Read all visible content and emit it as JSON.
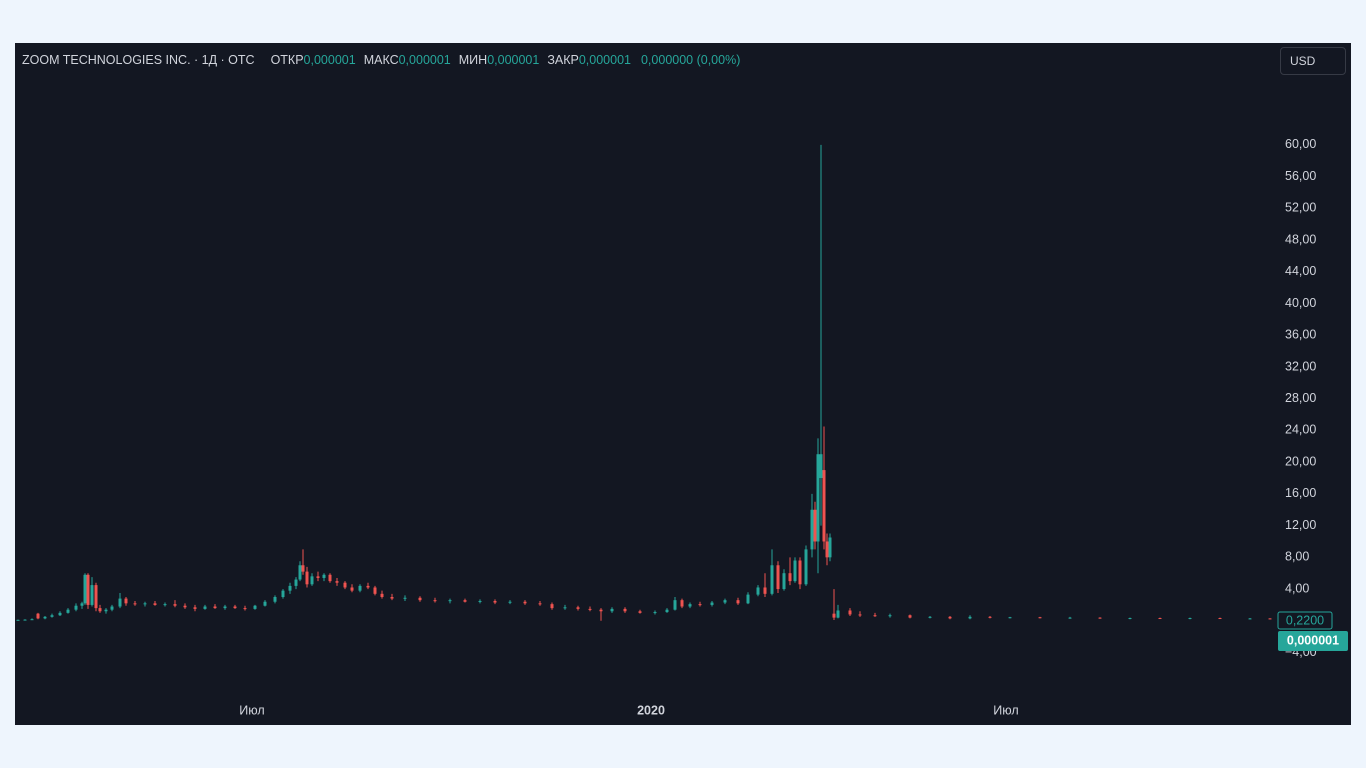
{
  "chart_data": {
    "type": "candlestick",
    "title": "ZOOM TECHNOLOGIES INC. · 1Д · OTC",
    "ohlc_legend": [
      {
        "label": "ОТКР",
        "value": "0,000001"
      },
      {
        "label": "МАКС",
        "value": "0,000001"
      },
      {
        "label": "МИН",
        "value": "0,000001"
      },
      {
        "label": "ЗАКР",
        "value": "0,000001"
      }
    ],
    "change": "0,000000 (0,00%)",
    "currency": "USD",
    "price_labels": [
      "0,2200",
      "0,000001"
    ],
    "up_color": "#26a69a",
    "down_color": "#ef5350",
    "x": [
      3,
      10,
      17,
      23,
      30,
      37,
      45,
      53,
      61,
      67,
      70,
      73,
      77,
      81,
      85,
      91,
      97,
      105,
      111,
      120,
      130,
      140,
      150,
      160,
      170,
      180,
      190,
      200,
      210,
      220,
      230,
      240,
      250,
      260,
      268,
      275,
      281,
      285,
      288,
      292,
      297,
      303,
      309,
      315,
      322,
      330,
      337,
      345,
      353,
      360,
      367,
      377,
      390,
      405,
      420,
      435,
      450,
      465,
      480,
      495,
      510,
      525,
      537,
      550,
      563,
      575,
      586,
      597,
      610,
      625,
      640,
      652,
      660,
      667,
      675,
      685,
      697,
      710,
      723,
      733,
      743,
      750,
      757,
      763,
      769,
      775,
      780,
      785,
      791,
      797,
      800,
      803,
      806,
      809,
      812,
      815,
      819,
      823,
      835,
      845,
      860,
      875,
      895,
      915,
      935,
      955,
      975,
      995,
      1025,
      1055,
      1085,
      1115,
      1145,
      1175,
      1205,
      1235,
      1255
    ],
    "open": [
      0.1,
      0.12,
      0.15,
      0.9,
      0.3,
      0.5,
      0.7,
      1.0,
      1.4,
      1.9,
      2.2,
      5.8,
      2.0,
      4.5,
      1.6,
      1.2,
      1.4,
      1.8,
      2.8,
      2.2,
      2.1,
      2.2,
      2.0,
      2.1,
      1.9,
      1.7,
      1.5,
      1.8,
      1.6,
      1.8,
      1.6,
      1.5,
      1.9,
      2.4,
      3.0,
      3.8,
      4.4,
      5.2,
      7.0,
      6.2,
      4.6,
      5.6,
      5.4,
      5.8,
      5.0,
      4.8,
      4.2,
      3.8,
      4.4,
      4.2,
      3.4,
      3.0,
      2.8,
      2.9,
      2.6,
      2.5,
      2.6,
      2.4,
      2.5,
      2.3,
      2.4,
      2.2,
      2.1,
      1.6,
      1.7,
      1.5,
      1.4,
      1.2,
      1.5,
      1.2,
      1.0,
      1.1,
      1.4,
      2.6,
      1.8,
      2.1,
      2.0,
      2.3,
      2.6,
      2.2,
      3.3,
      4.2,
      3.4,
      7.0,
      4.0,
      6.0,
      5.0,
      7.6,
      4.6,
      9.0,
      14.0,
      10.0,
      18.0,
      19.0,
      10.0,
      8.0,
      0.9,
      0.4,
      1.3,
      0.8,
      0.7,
      0.6,
      0.7,
      0.4,
      0.5,
      0.3,
      0.5,
      0.4,
      0.45,
      0.35,
      0.4,
      0.3,
      0.35,
      0.3,
      0.35,
      0.25,
      0.3
    ],
    "high": [
      0.15,
      0.2,
      0.3,
      1.0,
      0.6,
      0.9,
      1.2,
      1.6,
      2.2,
      2.4,
      6.0,
      6.0,
      5.5,
      4.8,
      2.0,
      1.6,
      2.0,
      3.5,
      3.0,
      2.5,
      2.4,
      2.5,
      2.3,
      2.6,
      2.2,
      2.0,
      2.0,
      2.1,
      2.0,
      2.0,
      1.9,
      2.0,
      2.6,
      3.2,
      4.0,
      4.8,
      5.5,
      7.5,
      9.0,
      6.8,
      6.0,
      6.2,
      6.0,
      6.0,
      5.4,
      5.0,
      4.6,
      4.6,
      4.8,
      4.4,
      3.8,
      3.4,
      3.2,
      3.1,
      2.9,
      2.8,
      2.8,
      2.7,
      2.7,
      2.6,
      2.6,
      2.5,
      2.3,
      2.0,
      1.9,
      1.8,
      1.6,
      1.7,
      1.7,
      1.4,
      1.3,
      1.6,
      3.0,
      2.8,
      2.3,
      2.4,
      2.5,
      2.8,
      2.9,
      3.6,
      4.5,
      6.0,
      9.0,
      7.5,
      6.5,
      8.0,
      8.0,
      8.0,
      9.5,
      16.0,
      15.0,
      23.0,
      60.0,
      24.5,
      11.0,
      11.0,
      4.0,
      2.0,
      1.6,
      1.2,
      1.0,
      0.9,
      0.8,
      0.6,
      0.6,
      0.7,
      0.6,
      0.5,
      0.5,
      0.5,
      0.45,
      0.4,
      0.4,
      0.4,
      0.4,
      0.35,
      0.32
    ],
    "low": [
      0.05,
      0.1,
      0.1,
      0.2,
      0.2,
      0.4,
      0.6,
      0.9,
      1.2,
      1.5,
      2.0,
      1.5,
      1.8,
      1.2,
      1.0,
      0.9,
      1.2,
      1.6,
      1.9,
      1.9,
      1.8,
      1.9,
      1.8,
      1.7,
      1.5,
      1.2,
      1.4,
      1.5,
      1.4,
      1.5,
      1.3,
      1.4,
      1.8,
      2.2,
      2.8,
      3.4,
      4.0,
      5.0,
      5.8,
      4.2,
      4.4,
      5.0,
      5.0,
      4.8,
      4.4,
      4.0,
      3.6,
      3.6,
      4.0,
      3.2,
      2.8,
      2.6,
      2.5,
      2.4,
      2.3,
      2.2,
      2.3,
      2.2,
      2.1,
      2.1,
      2.0,
      1.9,
      1.4,
      1.4,
      1.3,
      1.2,
      0.0,
      1.0,
      1.0,
      0.9,
      0.8,
      1.0,
      1.3,
      1.6,
      1.6,
      1.8,
      1.8,
      2.1,
      2.0,
      2.1,
      3.1,
      3.0,
      3.2,
      3.5,
      3.8,
      4.5,
      4.8,
      4.0,
      4.4,
      8.0,
      9.0,
      6.0,
      12.0,
      9.0,
      7.0,
      7.5,
      0.1,
      0.3,
      0.6,
      0.5,
      0.5,
      0.4,
      0.3,
      0.3,
      0.2,
      0.2,
      0.3,
      0.3,
      0.3,
      0.25,
      0.25,
      0.2,
      0.25,
      0.2,
      0.22,
      0.2,
      0.2
    ],
    "close": [
      0.12,
      0.15,
      0.2,
      0.3,
      0.5,
      0.7,
      1.0,
      1.4,
      1.9,
      2.2,
      5.8,
      2.0,
      4.5,
      1.6,
      1.2,
      1.4,
      1.8,
      2.8,
      2.2,
      2.1,
      2.2,
      2.0,
      2.1,
      1.9,
      1.7,
      1.5,
      1.8,
      1.6,
      1.8,
      1.6,
      1.5,
      1.9,
      2.4,
      3.0,
      3.8,
      4.4,
      5.2,
      7.0,
      6.2,
      4.6,
      5.6,
      5.4,
      5.8,
      5.0,
      4.8,
      4.2,
      3.8,
      4.4,
      4.2,
      3.4,
      3.0,
      2.8,
      2.9,
      2.6,
      2.5,
      2.6,
      2.4,
      2.5,
      2.3,
      2.4,
      2.2,
      2.1,
      1.6,
      1.7,
      1.5,
      1.4,
      1.2,
      1.5,
      1.2,
      1.0,
      1.1,
      1.4,
      2.6,
      1.8,
      2.1,
      2.0,
      2.3,
      2.6,
      2.2,
      3.3,
      4.2,
      3.4,
      7.0,
      4.0,
      6.0,
      5.0,
      7.6,
      4.6,
      9.0,
      14.0,
      10.0,
      21.0,
      21.0,
      10.0,
      8.0,
      10.5,
      0.4,
      1.3,
      0.8,
      0.7,
      0.6,
      0.7,
      0.4,
      0.5,
      0.3,
      0.5,
      0.4,
      0.45,
      0.35,
      0.4,
      0.3,
      0.35,
      0.3,
      0.35,
      0.25,
      0.3,
      0.22
    ],
    "xlim": [
      0,
      1260
    ],
    "xticks": [
      {
        "value": 237,
        "label": "Июл"
      },
      {
        "value": 636,
        "label": "2020"
      },
      {
        "value": 991,
        "label": "Июл"
      }
    ],
    "ylim": [
      -6.96,
      64.9
    ],
    "yticks": [
      {
        "value": -4,
        "label": "−4,00"
      },
      {
        "value": 4,
        "label": "4,00"
      },
      {
        "value": 8,
        "label": "8,00"
      },
      {
        "value": 12,
        "label": "12,00"
      },
      {
        "value": 16,
        "label": "16,00"
      },
      {
        "value": 20,
        "label": "20,00"
      },
      {
        "value": 24,
        "label": "24,00"
      },
      {
        "value": 28,
        "label": "28,00"
      },
      {
        "value": 32,
        "label": "32,00"
      },
      {
        "value": 36,
        "label": "36,00"
      },
      {
        "value": 40,
        "label": "40,00"
      },
      {
        "value": 44,
        "label": "44,00"
      },
      {
        "value": 48,
        "label": "48,00"
      },
      {
        "value": 52,
        "label": "52,00"
      },
      {
        "value": 56,
        "label": "56,00"
      },
      {
        "value": 60,
        "label": "60,00"
      }
    ]
  }
}
